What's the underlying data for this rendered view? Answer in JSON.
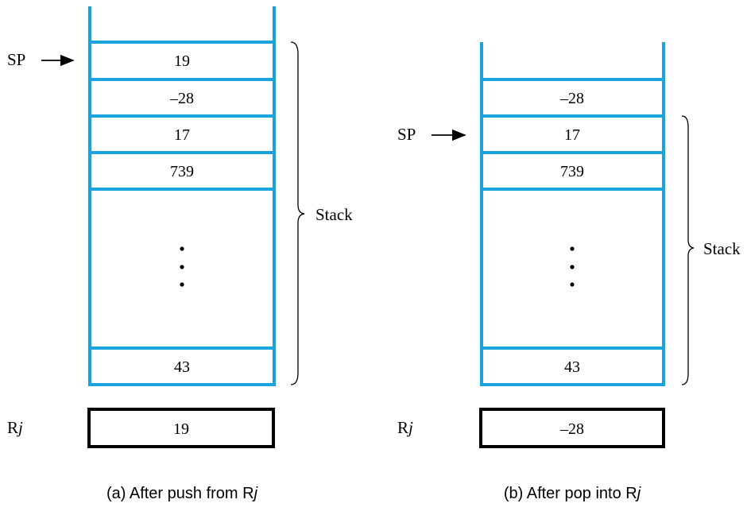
{
  "colors": {
    "stack_line": "#1aa3de",
    "register_border": "#000000"
  },
  "panel_a": {
    "sp_label": "SP",
    "cells": [
      "19",
      "–28",
      "17",
      "739",
      "43"
    ],
    "stack_label": "Stack",
    "register_label": "R",
    "register_sub": "j",
    "register_value": "19",
    "caption_text": "(a) After push from R",
    "caption_sub": "j"
  },
  "panel_b": {
    "sp_label": "SP",
    "cells": [
      "–28",
      "17",
      "739",
      "43"
    ],
    "stack_label": "Stack",
    "register_label": "R",
    "register_sub": "j",
    "register_value": "–28",
    "caption_text": "(b) After pop into R",
    "caption_sub": "j"
  }
}
